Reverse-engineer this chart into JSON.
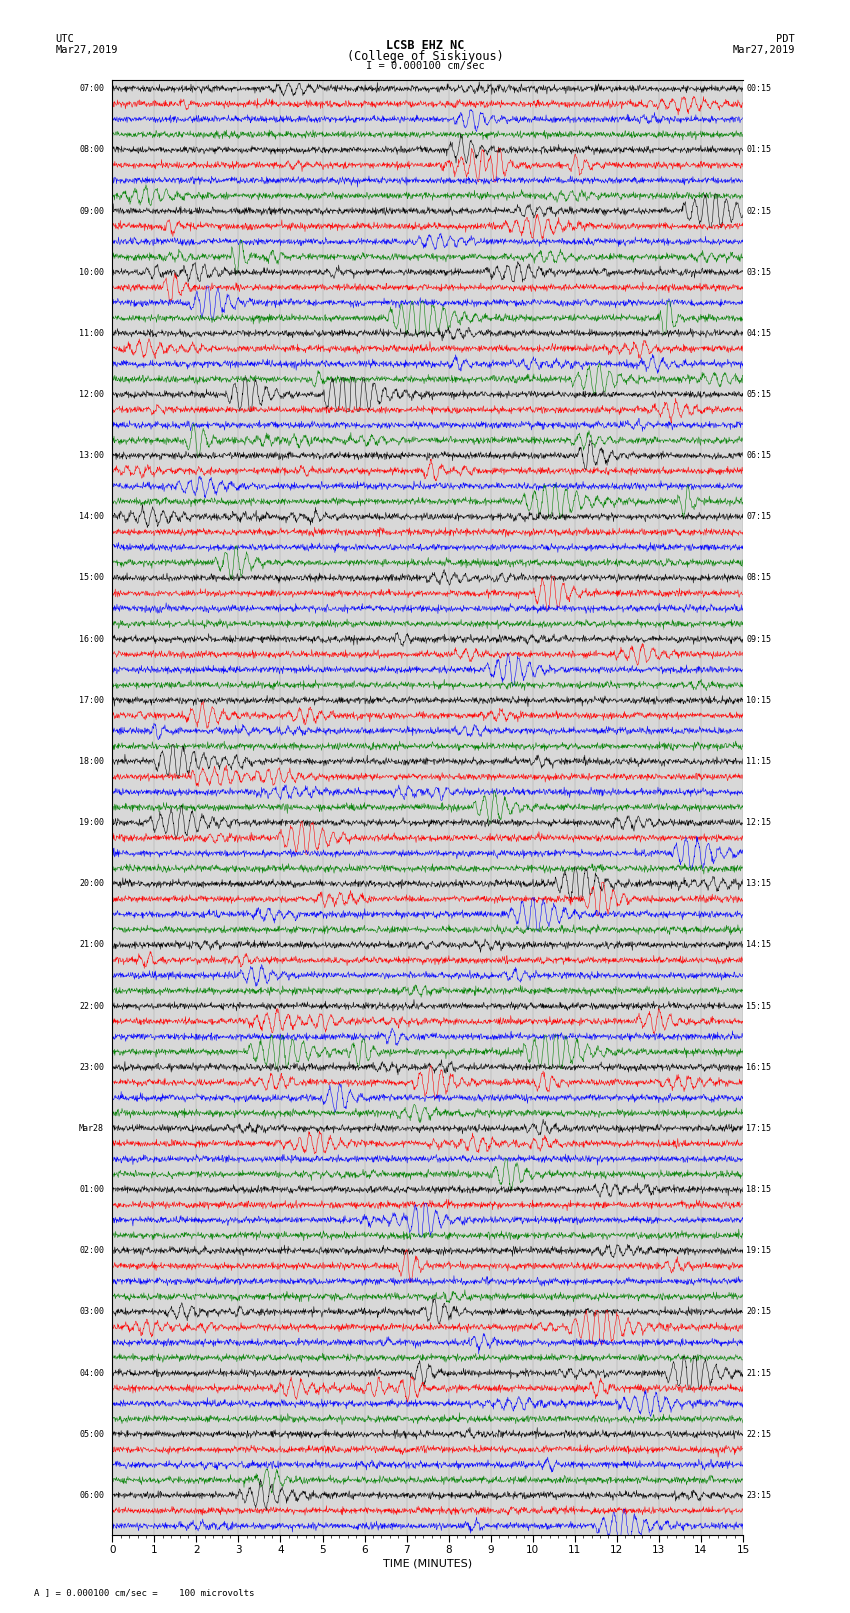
{
  "title_line1": "LCSB EHZ NC",
  "title_line2": "(College of Siskiyous)",
  "scale_label": "I = 0.000100 cm/sec",
  "left_label_top": "UTC",
  "left_label_date": "Mar27,2019",
  "right_label_top": "PDT",
  "right_label_date": "Mar27,2019",
  "bottom_label": "TIME (MINUTES)",
  "bottom_note": "= 0.000100 cm/sec =    100 microvolts",
  "utc_times": [
    "07:00",
    "",
    "",
    "",
    "08:00",
    "",
    "",
    "",
    "09:00",
    "",
    "",
    "",
    "10:00",
    "",
    "",
    "",
    "11:00",
    "",
    "",
    "",
    "12:00",
    "",
    "",
    "",
    "13:00",
    "",
    "",
    "",
    "14:00",
    "",
    "",
    "",
    "15:00",
    "",
    "",
    "",
    "16:00",
    "",
    "",
    "",
    "17:00",
    "",
    "",
    "",
    "18:00",
    "",
    "",
    "",
    "19:00",
    "",
    "",
    "",
    "20:00",
    "",
    "",
    "",
    "21:00",
    "",
    "",
    "",
    "22:00",
    "",
    "",
    "",
    "23:00",
    "",
    "",
    "",
    "Mar28",
    "",
    "",
    "",
    "01:00",
    "",
    "",
    "",
    "02:00",
    "",
    "",
    "",
    "03:00",
    "",
    "",
    "",
    "04:00",
    "",
    "",
    "",
    "05:00",
    "",
    "",
    "",
    "06:00",
    "",
    ""
  ],
  "pdt_times": [
    "00:15",
    "",
    "",
    "",
    "01:15",
    "",
    "",
    "",
    "02:15",
    "",
    "",
    "",
    "03:15",
    "",
    "",
    "",
    "04:15",
    "",
    "",
    "",
    "05:15",
    "",
    "",
    "",
    "06:15",
    "",
    "",
    "",
    "07:15",
    "",
    "",
    "",
    "08:15",
    "",
    "",
    "",
    "09:15",
    "",
    "",
    "",
    "10:15",
    "",
    "",
    "",
    "11:15",
    "",
    "",
    "",
    "12:15",
    "",
    "",
    "",
    "13:15",
    "",
    "",
    "",
    "14:15",
    "",
    "",
    "",
    "15:15",
    "",
    "",
    "",
    "16:15",
    "",
    "",
    "",
    "17:15",
    "",
    "",
    "",
    "18:15",
    "",
    "",
    "",
    "19:15",
    "",
    "",
    "",
    "20:15",
    "",
    "",
    "",
    "21:15",
    "",
    "",
    "",
    "22:15",
    "",
    "",
    "",
    "23:15",
    "",
    ""
  ],
  "colors_cycle": [
    "black",
    "red",
    "blue",
    "green"
  ],
  "bg_color": "white",
  "plot_bg": "#d8d8d8",
  "xmin": 0,
  "xmax": 15,
  "amplitude": 0.38,
  "noise_base": 0.09,
  "seed": 42
}
